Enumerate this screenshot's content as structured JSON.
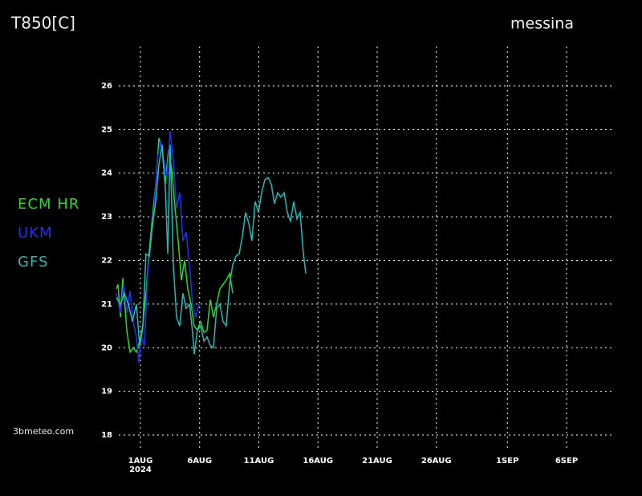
{
  "chart_data": {
    "type": "line",
    "title": "T850[C]",
    "subtitle": "messina",
    "credit": "3bmeteo.com",
    "x_year": "2024",
    "xlim": [
      -1.83,
      40
    ],
    "ylim": [
      17.67,
      26.9
    ],
    "xticks": [
      {
        "value": 0,
        "label": "1AUG"
      },
      {
        "value": 5,
        "label": "6AUG"
      },
      {
        "value": 10,
        "label": "11AUG"
      },
      {
        "value": 15,
        "label": "16AUG"
      },
      {
        "value": 20,
        "label": "21AUG"
      },
      {
        "value": 25,
        "label": "26AUG"
      },
      {
        "value": 31,
        "label": "1SEP"
      },
      {
        "value": 36,
        "label": "6SEP"
      }
    ],
    "yticks": [
      18,
      19,
      20,
      21,
      22,
      23,
      24,
      25,
      26
    ],
    "grid": true,
    "series": [
      {
        "name": "ECM HR",
        "color": "#22dd22",
        "x": [
          -2.03,
          -1.9,
          -1.69,
          -1.49,
          -1.15,
          -0.88,
          -0.61,
          -0.34,
          -0.07,
          0.2,
          0.47,
          0.75,
          1.02,
          1.29,
          1.56,
          1.83,
          2.1,
          2.37,
          2.64,
          2.92,
          3.19,
          3.46,
          3.73,
          4.0,
          4.27,
          4.54,
          4.81,
          5.08,
          5.36,
          5.63,
          5.9,
          6.17,
          6.44,
          6.71,
          6.98,
          7.25,
          7.53,
          7.8
        ],
        "values": [
          21.35,
          21.45,
          20.7,
          21.6,
          20.4,
          19.9,
          20.0,
          19.9,
          20.15,
          20.5,
          21.25,
          22.25,
          23.0,
          23.75,
          24.8,
          24.55,
          23.75,
          24.55,
          24.1,
          23.2,
          22.45,
          21.55,
          22.0,
          21.35,
          21.0,
          20.5,
          20.4,
          20.6,
          20.35,
          20.4,
          21.1,
          20.7,
          21.0,
          21.35,
          21.45,
          21.55,
          21.7,
          21.25
        ]
      },
      {
        "name": "UKM",
        "color": "#2233ee",
        "x": [
          -2.03,
          -1.69,
          -1.42,
          -1.15,
          -0.88,
          -0.61,
          -0.34,
          -0.14,
          0.07,
          0.34,
          0.61,
          0.88,
          1.15,
          1.42,
          1.69,
          1.97,
          2.24,
          2.51,
          2.78,
          3.05,
          3.32,
          3.59,
          3.86,
          4.14,
          4.41,
          4.68,
          4.95
        ],
        "values": [
          21.25,
          20.8,
          21.45,
          20.8,
          21.3,
          20.6,
          20.25,
          19.65,
          20.25,
          20.05,
          21.7,
          22.45,
          23.2,
          24.3,
          24.75,
          24.3,
          23.9,
          24.95,
          24.3,
          23.2,
          23.55,
          22.45,
          22.65,
          21.9,
          21.0,
          20.7,
          21.0
        ]
      },
      {
        "name": "GFS",
        "color": "#22bbbb",
        "x": [
          -2.03,
          -1.69,
          -1.36,
          -1.02,
          -0.68,
          -0.34,
          -0.07,
          0.2,
          0.47,
          0.75,
          1.02,
          1.29,
          1.56,
          1.83,
          2.1,
          2.31,
          2.51,
          2.78,
          3.05,
          3.32,
          3.59,
          3.86,
          4.14,
          4.41,
          4.54,
          4.81,
          5.08,
          5.36,
          5.63,
          5.9,
          6.17,
          6.44,
          6.71,
          6.98,
          7.25,
          7.53,
          7.8,
          8.07,
          8.34,
          8.61,
          8.88,
          9.15,
          9.42,
          9.69,
          9.97,
          10.24,
          10.51,
          10.78,
          11.05,
          11.32,
          11.59,
          11.86,
          12.14,
          12.41,
          12.68,
          12.95,
          13.22,
          13.49,
          13.76,
          13.97
        ],
        "values": [
          21.15,
          21.0,
          21.25,
          21.0,
          20.6,
          21.0,
          20.05,
          20.45,
          22.15,
          22.1,
          22.8,
          23.35,
          24.2,
          24.65,
          23.65,
          22.15,
          24.65,
          21.9,
          20.7,
          20.5,
          21.25,
          20.9,
          21.0,
          20.35,
          19.85,
          20.4,
          20.5,
          20.15,
          20.25,
          20.05,
          20.0,
          20.9,
          21.0,
          20.6,
          20.5,
          21.45,
          21.9,
          22.1,
          22.15,
          22.55,
          23.1,
          22.85,
          22.45,
          23.35,
          23.1,
          23.55,
          23.85,
          23.9,
          23.75,
          23.3,
          23.55,
          23.45,
          23.55,
          23.1,
          22.9,
          23.35,
          22.95,
          23.1,
          22.15,
          21.7
        ]
      }
    ]
  }
}
